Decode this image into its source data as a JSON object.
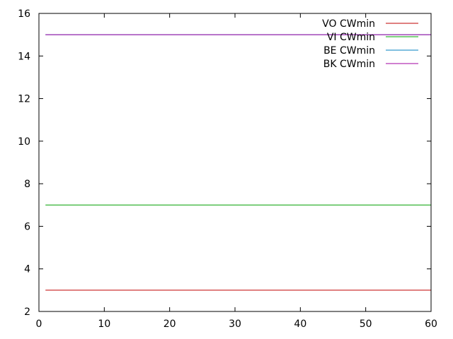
{
  "chart_data": {
    "type": "line",
    "title": "",
    "xlabel": "",
    "ylabel": "",
    "xlim": [
      0,
      60
    ],
    "ylim": [
      2,
      16
    ],
    "xticks": [
      "0",
      "10",
      "20",
      "30",
      "40",
      "50",
      "60"
    ],
    "yticks": [
      "2",
      "4",
      "6",
      "8",
      "10",
      "12",
      "14",
      "16"
    ],
    "grid": false,
    "legend_position": "top-right",
    "series": [
      {
        "name": "VO CWmin",
        "color": "#c00000",
        "x": [
          1,
          60
        ],
        "y": [
          3,
          3
        ]
      },
      {
        "name": "VI CWmin",
        "color": "#00a000",
        "x": [
          1,
          60
        ],
        "y": [
          7,
          7
        ]
      },
      {
        "name": "BE CWmin",
        "color": "#0080c0",
        "x": [
          1,
          60
        ],
        "y": [
          15,
          15
        ]
      },
      {
        "name": "BK CWmin",
        "color": "#a000a0",
        "x": [
          1,
          60
        ],
        "y": [
          15,
          15
        ]
      }
    ]
  }
}
